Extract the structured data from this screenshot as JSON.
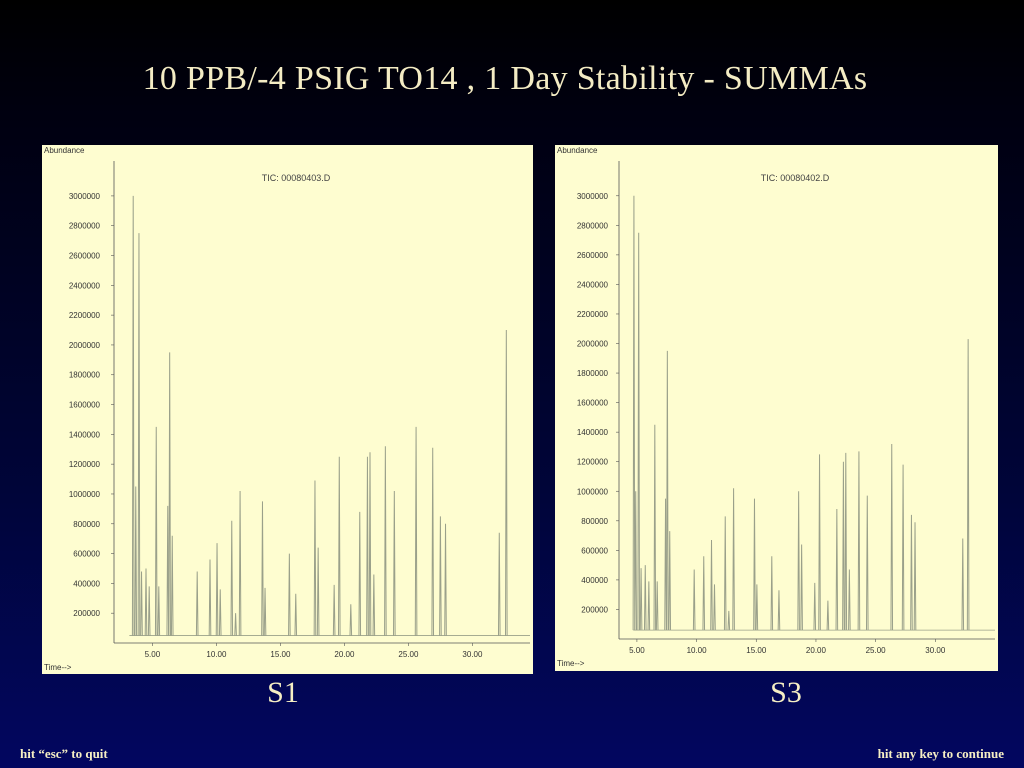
{
  "slide": {
    "title": "10 PPB/-4 PSIG TO14 , 1 Day Stability - SUMMAs",
    "footer_left": "hit “esc” to quit",
    "footer_right": "hit any key to continue"
  },
  "colors": {
    "panel_background": "#fefdd0",
    "trace": "#9aa08a",
    "axis": "#555555",
    "label_text": "#f6efc4"
  },
  "chart_data": [
    {
      "type": "line",
      "panel_label": "S1",
      "title": "TIC: 00080403.D",
      "ylabel": "Abundance",
      "xlabel": "Time-->",
      "xlim": [
        2.0,
        34.5
      ],
      "ylim": [
        0,
        3100000
      ],
      "x_ticks": [
        5.0,
        10.0,
        15.0,
        20.0,
        25.0,
        30.0
      ],
      "x_tick_labels": [
        "5.00",
        "10.00",
        "15.00",
        "20.00",
        "25.00",
        "30.00"
      ],
      "y_ticks": [
        200000,
        400000,
        600000,
        800000,
        1000000,
        1200000,
        1400000,
        1600000,
        1800000,
        2000000,
        2200000,
        2400000,
        2600000,
        2800000,
        3000000
      ],
      "y_tick_labels": [
        "200000",
        "400000",
        "600000",
        "800000",
        "1000000",
        "1200000",
        "1400000",
        "1600000",
        "1800000",
        "2000000",
        "2200000",
        "2400000",
        "2600000",
        "2800000",
        "3000000"
      ],
      "baseline": 50000,
      "peaks": [
        {
          "t": 3.5,
          "h": 3000000
        },
        {
          "t": 3.7,
          "h": 1050000
        },
        {
          "t": 3.95,
          "h": 2750000
        },
        {
          "t": 4.15,
          "h": 480000
        },
        {
          "t": 4.5,
          "h": 500000
        },
        {
          "t": 4.75,
          "h": 380000
        },
        {
          "t": 5.3,
          "h": 1450000
        },
        {
          "t": 5.5,
          "h": 380000
        },
        {
          "t": 6.2,
          "h": 920000
        },
        {
          "t": 6.35,
          "h": 1950000
        },
        {
          "t": 6.55,
          "h": 720000
        },
        {
          "t": 8.5,
          "h": 480000
        },
        {
          "t": 9.5,
          "h": 560000
        },
        {
          "t": 10.05,
          "h": 670000
        },
        {
          "t": 10.3,
          "h": 360000
        },
        {
          "t": 11.2,
          "h": 820000
        },
        {
          "t": 11.5,
          "h": 200000
        },
        {
          "t": 11.85,
          "h": 1020000
        },
        {
          "t": 13.6,
          "h": 950000
        },
        {
          "t": 13.8,
          "h": 370000
        },
        {
          "t": 15.7,
          "h": 600000
        },
        {
          "t": 16.2,
          "h": 330000
        },
        {
          "t": 17.7,
          "h": 1090000
        },
        {
          "t": 17.95,
          "h": 640000
        },
        {
          "t": 19.2,
          "h": 390000
        },
        {
          "t": 19.6,
          "h": 1250000
        },
        {
          "t": 20.5,
          "h": 260000
        },
        {
          "t": 21.2,
          "h": 880000
        },
        {
          "t": 21.8,
          "h": 1250000
        },
        {
          "t": 22.0,
          "h": 1280000
        },
        {
          "t": 22.3,
          "h": 460000
        },
        {
          "t": 23.2,
          "h": 1320000
        },
        {
          "t": 23.9,
          "h": 1020000
        },
        {
          "t": 25.6,
          "h": 1450000
        },
        {
          "t": 26.9,
          "h": 1310000
        },
        {
          "t": 27.5,
          "h": 850000
        },
        {
          "t": 27.9,
          "h": 800000
        },
        {
          "t": 32.1,
          "h": 740000
        },
        {
          "t": 32.65,
          "h": 2100000
        }
      ]
    },
    {
      "type": "line",
      "panel_label": "S3",
      "title": "TIC: 00080402.D",
      "ylabel": "Abundance",
      "xlabel": "Time-->",
      "xlim": [
        3.5,
        35.0
      ],
      "ylim": [
        0,
        3100000
      ],
      "x_ticks": [
        5.0,
        10.0,
        15.0,
        20.0,
        25.0,
        30.0
      ],
      "x_tick_labels": [
        "5.00",
        "10.00",
        "15.00",
        "20.00",
        "25.00",
        "30.00"
      ],
      "y_ticks": [
        200000,
        400000,
        600000,
        800000,
        1000000,
        1200000,
        1400000,
        1600000,
        1800000,
        2000000,
        2200000,
        2400000,
        2600000,
        2800000,
        3000000
      ],
      "y_tick_labels": [
        "200000",
        "400000",
        "600000",
        "800000",
        "1000000",
        "1200000",
        "1400000",
        "1600000",
        "1800000",
        "2000000",
        "2200000",
        "2400000",
        "2600000",
        "2800000",
        "3000000"
      ],
      "baseline": 60000,
      "peaks": [
        {
          "t": 4.75,
          "h": 3000000
        },
        {
          "t": 4.9,
          "h": 1000000
        },
        {
          "t": 5.15,
          "h": 2750000
        },
        {
          "t": 5.35,
          "h": 480000
        },
        {
          "t": 5.7,
          "h": 500000
        },
        {
          "t": 6.0,
          "h": 390000
        },
        {
          "t": 6.5,
          "h": 1450000
        },
        {
          "t": 6.7,
          "h": 390000
        },
        {
          "t": 7.4,
          "h": 950000
        },
        {
          "t": 7.55,
          "h": 1950000
        },
        {
          "t": 7.75,
          "h": 730000
        },
        {
          "t": 9.8,
          "h": 470000
        },
        {
          "t": 10.6,
          "h": 560000
        },
        {
          "t": 11.25,
          "h": 670000
        },
        {
          "t": 11.5,
          "h": 370000
        },
        {
          "t": 12.4,
          "h": 830000
        },
        {
          "t": 12.7,
          "h": 190000
        },
        {
          "t": 13.1,
          "h": 1020000
        },
        {
          "t": 14.85,
          "h": 950000
        },
        {
          "t": 15.05,
          "h": 370000
        },
        {
          "t": 16.3,
          "h": 560000
        },
        {
          "t": 16.9,
          "h": 330000
        },
        {
          "t": 18.55,
          "h": 1000000
        },
        {
          "t": 18.8,
          "h": 640000
        },
        {
          "t": 19.9,
          "h": 380000
        },
        {
          "t": 20.3,
          "h": 1250000
        },
        {
          "t": 21.0,
          "h": 260000
        },
        {
          "t": 21.75,
          "h": 880000
        },
        {
          "t": 22.3,
          "h": 1200000
        },
        {
          "t": 22.5,
          "h": 1260000
        },
        {
          "t": 22.8,
          "h": 470000
        },
        {
          "t": 23.6,
          "h": 1270000
        },
        {
          "t": 24.3,
          "h": 970000
        },
        {
          "t": 26.35,
          "h": 1320000
        },
        {
          "t": 27.3,
          "h": 1180000
        },
        {
          "t": 28.0,
          "h": 840000
        },
        {
          "t": 28.3,
          "h": 790000
        },
        {
          "t": 32.3,
          "h": 680000
        },
        {
          "t": 32.75,
          "h": 2030000
        }
      ]
    }
  ]
}
